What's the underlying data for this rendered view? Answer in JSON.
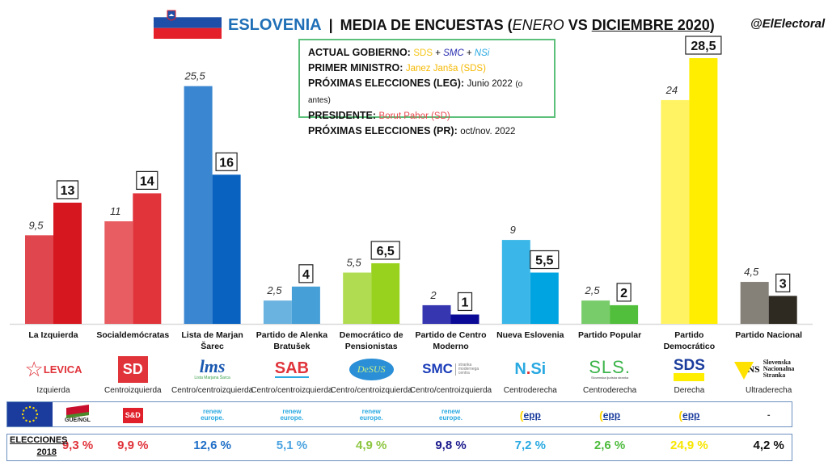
{
  "header": {
    "country": "ESLOVENIA",
    "separator": "|",
    "title_main": "MEDIA DE ENCUESTAS (",
    "title_enero": "ENERO",
    "title_vs": " VS ",
    "title_dic": "DICIEMBRE 2020",
    "title_close": ")",
    "handle": "@ElElectoral"
  },
  "info": {
    "gov_label": "ACTUAL GOBIERNO:",
    "gov_parts": [
      {
        "text": "SDS",
        "color": "#f5c518"
      },
      {
        "text": " + ",
        "color": "#111111"
      },
      {
        "text": "SMC",
        "color": "#2a2fb0"
      },
      {
        "text": " + ",
        "color": "#111111"
      },
      {
        "text": "NSi",
        "color": "#29a9e1"
      }
    ],
    "pm_label": "PRIMER MINISTRO:",
    "pm_value": "Janez Janša (SDS)",
    "leg_label": "PRÓXIMAS ELECCIONES (LEG):",
    "leg_value": "Junio 2022",
    "leg_note": "(o antes)",
    "pres_label": "PRESIDENTE:",
    "pres_value": "Borut Pahor (SD)",
    "pr_label": "PRÓXIMAS ELECCIONES (PR):",
    "pr_value": "oct/nov. 2022"
  },
  "chart_data": {
    "type": "bar",
    "title": "ESLOVENIA | MEDIA DE ENCUESTAS (ENERO VS DICIEMBRE 2020)",
    "xlabel": "",
    "ylabel": "",
    "ylim": [
      0,
      28.5
    ],
    "grid": false,
    "categories": [
      "La Izquierda",
      "Socialdemócratas",
      "Lista de Marjan Šarec",
      "Partido de Alenka Bratušek",
      "Democrático de Pensionistas",
      "Partido de Centro Moderno",
      "Nueva Eslovenia",
      "Partido Popular",
      "Partido Democrático",
      "Partido Nacional"
    ],
    "series": [
      {
        "name": "Enero 2020",
        "values": [
          9.5,
          11,
          25.5,
          2.5,
          5.5,
          2,
          9,
          2.5,
          24,
          4.5
        ],
        "labels": [
          "9,5",
          "11",
          "25,5",
          "2,5",
          "5,5",
          "2",
          "9",
          "2,5",
          "24",
          "4,5"
        ]
      },
      {
        "name": "Diciembre 2020",
        "values": [
          13,
          14,
          16,
          4,
          6.5,
          1,
          5.5,
          2,
          28.5,
          3
        ],
        "labels": [
          "13",
          "14",
          "16",
          "4",
          "6,5",
          "1",
          "5,5",
          "2",
          "28,5",
          "3"
        ]
      }
    ],
    "colors_enero": [
      "#e0464e",
      "#e85d62",
      "#3a86d0",
      "#6ab3e0",
      "#b0dc52",
      "#3636b0",
      "#3ab7e8",
      "#78cc6a",
      "#fff363",
      "#858078"
    ],
    "colors_dic": [
      "#d6171f",
      "#e0333a",
      "#0a62c0",
      "#469fd6",
      "#98d11e",
      "#0a0a96",
      "#00a4e0",
      "#52bf3c",
      "#ffee00",
      "#2e2a22"
    ]
  },
  "parties": [
    {
      "name": "La Izquierda",
      "logo": "LEVICA",
      "logo_icon": "star-icon",
      "ideology": "Izquierda",
      "eu_group": "GUE/NGL",
      "result_2018": "9,3 %",
      "color": "#e0333a"
    },
    {
      "name": "Socialdemócratas",
      "logo": "SD",
      "ideology": "Centroizquierda",
      "eu_group": "S&D",
      "result_2018": "9,9 %",
      "color": "#e0333a"
    },
    {
      "name": "Lista de Marjan Šarec",
      "logo": "lms",
      "logo_sub": "Lista Marjana Šarca",
      "ideology": "Centro/centroizquierda",
      "eu_group": "renew europe.",
      "result_2018": "12,6 %",
      "color": "#1f6fc7"
    },
    {
      "name": "Partido de Alenka Bratušek",
      "logo": "SAB",
      "ideology": "Centro/centroizquierda",
      "eu_group": "renew europe.",
      "result_2018": "5,1 %",
      "color": "#4aa3e0"
    },
    {
      "name": "Democrático de Pensionistas",
      "logo": "DeSUS",
      "ideology": "Centro/centroizquierda",
      "eu_group": "renew europe.",
      "result_2018": "4,9 %",
      "color": "#8cc63f"
    },
    {
      "name": "Partido de Centro Moderno",
      "logo": "SMC",
      "logo_sub": "stranka modernega centra",
      "ideology": "Centro/centroizquierda",
      "eu_group": "renew europe.",
      "result_2018": "9,8 %",
      "color": "#1a1a8c"
    },
    {
      "name": "Nueva Eslovenia",
      "logo": "N.Si",
      "ideology": "Centroderecha",
      "eu_group": "epp",
      "result_2018": "7,2 %",
      "color": "#29a9e1"
    },
    {
      "name": "Partido Popular",
      "logo": "SLS",
      "logo_sub": "Slovenska ljudska stranka",
      "ideology": "Centroderecha",
      "eu_group": "epp",
      "result_2018": "2,6 %",
      "color": "#4cbb3c"
    },
    {
      "name": "Partido Democrático",
      "logo": "SDS",
      "ideology": "Derecha",
      "eu_group": "epp",
      "result_2018": "24,9 %",
      "color": "#ffee00"
    },
    {
      "name": "Partido Nacional",
      "logo": "SNS",
      "logo_sub": "Slovenska Nacionalna Stranka",
      "ideology": "Ultraderecha",
      "eu_group": "-",
      "result_2018": "4,2 %",
      "color": "#111111"
    }
  ],
  "elections_label_1": "ELECCIONES",
  "elections_label_2": "2018"
}
